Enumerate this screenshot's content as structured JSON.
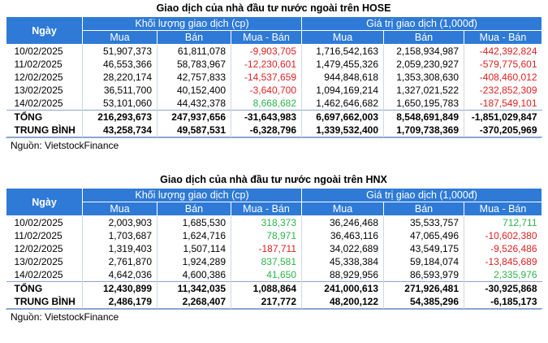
{
  "hose": {
    "title": "Giao dịch của nhà đầu tư nước ngoài trên HOSE",
    "col_date": "Ngày",
    "group_volume": "Khối lượng giao dịch (cp)",
    "group_value": "Giá trị giao dịch (1,000đ)",
    "sub": [
      "Mua",
      "Bán",
      "Mua - Bán",
      "Mua",
      "Bán",
      "Mua - Bán"
    ],
    "rows": [
      {
        "date": "10/02/2025",
        "v": [
          "51,907,373",
          "61,811,078",
          "-9,903,705",
          "1,716,542,163",
          "2,158,934,987",
          "-442,392,824"
        ],
        "s": [
          "",
          "",
          "neg",
          "",
          "",
          "neg"
        ]
      },
      {
        "date": "11/02/2025",
        "v": [
          "46,553,366",
          "58,783,967",
          "-12,230,601",
          "1,479,455,326",
          "2,059,230,927",
          "-579,775,601"
        ],
        "s": [
          "",
          "",
          "neg",
          "",
          "",
          "neg"
        ]
      },
      {
        "date": "12/02/2025",
        "v": [
          "28,220,174",
          "42,757,833",
          "-14,537,659",
          "944,848,618",
          "1,353,308,630",
          "-408,460,012"
        ],
        "s": [
          "",
          "",
          "neg",
          "",
          "",
          "neg"
        ]
      },
      {
        "date": "13/02/2025",
        "v": [
          "36,511,700",
          "40,152,400",
          "-3,640,700",
          "1,094,169,214",
          "1,327,021,522",
          "-232,852,309"
        ],
        "s": [
          "",
          "",
          "neg",
          "",
          "",
          "neg"
        ]
      },
      {
        "date": "14/02/2025",
        "v": [
          "53,101,060",
          "44,432,378",
          "8,668,682",
          "1,462,646,682",
          "1,650,195,783",
          "-187,549,101"
        ],
        "s": [
          "",
          "",
          "pos",
          "",
          "",
          "neg"
        ]
      }
    ],
    "total_label": "TỔNG",
    "total": [
      "216,293,673",
      "247,937,656",
      "-31,643,983",
      "6,697,662,003",
      "8,548,691,849",
      "-1,851,029,847"
    ],
    "avg_label": "TRUNG BÌNH",
    "avg": [
      "43,258,734",
      "49,587,531",
      "-6,328,796",
      "1,339,532,400",
      "1,709,738,369",
      "-370,205,969"
    ],
    "source": "Nguồn: VietstockFinance"
  },
  "hnx": {
    "title": "Giao dịch của nhà đầu tư nước ngoài trên HNX",
    "col_date": "Ngày",
    "group_volume": "Khối lượng giao dịch (cp)",
    "group_value": "Giá trị giao dịch (1,000đ)",
    "sub": [
      "Mua",
      "Bán",
      "Mua - Bán",
      "Mua",
      "Bán",
      "Mua - Bán"
    ],
    "rows": [
      {
        "date": "10/02/2025",
        "v": [
          "2,003,903",
          "1,685,530",
          "318,373",
          "36,246,468",
          "35,533,757",
          "712,711"
        ],
        "s": [
          "",
          "",
          "pos",
          "",
          "",
          "pos"
        ]
      },
      {
        "date": "11/02/2025",
        "v": [
          "1,703,687",
          "1,624,716",
          "78,971",
          "36,463,116",
          "47,065,496",
          "-10,602,380"
        ],
        "s": [
          "",
          "",
          "pos",
          "",
          "",
          "neg"
        ]
      },
      {
        "date": "12/02/2025",
        "v": [
          "1,319,403",
          "1,507,114",
          "-187,711",
          "34,022,689",
          "43,549,175",
          "-9,526,486"
        ],
        "s": [
          "",
          "",
          "neg",
          "",
          "",
          "neg"
        ]
      },
      {
        "date": "13/02/2025",
        "v": [
          "2,761,870",
          "1,924,289",
          "837,581",
          "45,338,384",
          "59,184,074",
          "-13,845,689"
        ],
        "s": [
          "",
          "",
          "pos",
          "",
          "",
          "neg"
        ]
      },
      {
        "date": "14/02/2025",
        "v": [
          "4,642,036",
          "4,600,386",
          "41,650",
          "88,929,956",
          "86,593,979",
          "2,335,976"
        ],
        "s": [
          "",
          "",
          "pos",
          "",
          "",
          "pos"
        ]
      }
    ],
    "total_label": "TỔNG",
    "total": [
      "12,430,899",
      "11,342,035",
      "1,088,864",
      "241,000,613",
      "271,926,481",
      "-30,925,868"
    ],
    "avg_label": "TRUNG BÌNH",
    "avg": [
      "2,486,179",
      "2,268,407",
      "217,772",
      "48,200,122",
      "54,385,296",
      "-6,185,173"
    ],
    "source": "Nguồn: VietstockFinance"
  },
  "colors": {
    "header_bg": "#2e7ad6",
    "negative": "#e02020",
    "positive": "#2db34a"
  }
}
